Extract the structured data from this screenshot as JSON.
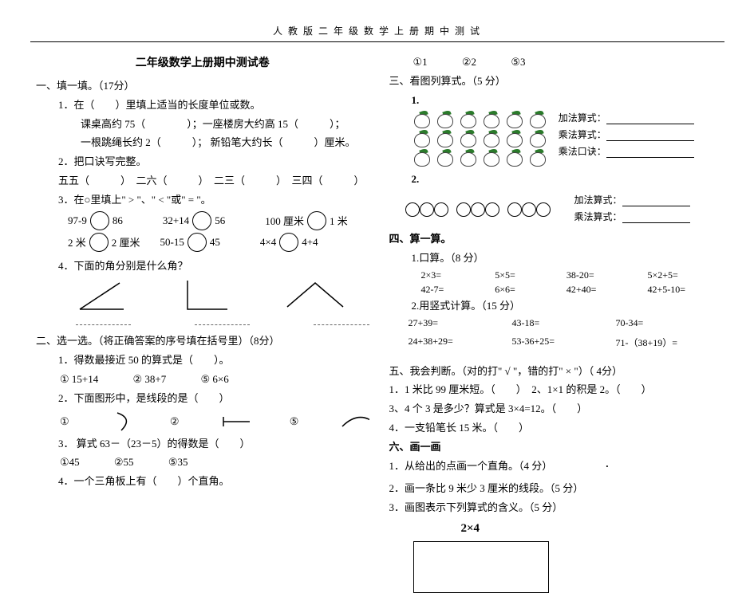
{
  "header": "人 教 版 二 年 级 数 学 上 册 期 中 测 试",
  "title": "二年级数学上册期中测试卷",
  "s1": {
    "h": "一、填一填。（17分）",
    "q1": "1．在（　　）里填上适当的长度单位或数。",
    "q1a": "课桌高约 75（　　　　）；一座楼房大约高 15（　　　）；",
    "q1b": "一根跳绳长约 2（　　　）； 新铅笔大约长（　　　）厘米。",
    "q2": "2．把口诀写完整。",
    "q2a": "五五（　　　）　二六（　　　）　二三（　　　）　三四（　　　）",
    "q3": "3．在○里填上\" > \"、\" < \"或\" = \"。",
    "q3r1a": "97-9",
    "q3r1b": "86",
    "q3r1c": "32+14",
    "q3r1d": "56",
    "q3r1e": "100 厘米",
    "q3r1f": "1 米",
    "q3r2a": "2 米",
    "q3r2b": "2 厘米",
    "q3r2c": "50-15",
    "q3r2d": "45",
    "q3r2e": "4×4",
    "q3r2f": "4+4",
    "q4": "4．下面的角分别是什么角？"
  },
  "s2": {
    "h": "二、选一选。（将正确答案的序号填在括号里）（8分）",
    "q1": "1．得数最接近 50 的算式是（　　）。",
    "q1a": "① 15+14",
    "q1b": "② 38+7",
    "q1c": "⑤ 6×6",
    "q2": "2．下面图形中，是线段的是（　　）",
    "q3": "3． 算式 63－（23－5）的得数是（　　）",
    "q3a": "①45",
    "q3b": "②55",
    "q3c": "⑤35",
    "q4": "4．一个三角板上有（　　）个直角。",
    "q4a": "①1",
    "q4b": "②2",
    "q4c": "⑤3"
  },
  "s3": {
    "h": "三、看图列算式。（5 分）",
    "lbl1": "1.",
    "eq1": "加法算式：",
    "eq2": "乘法算式：",
    "eq3": "乘法口诀：",
    "lbl2": "2.",
    "eq4": "加法算式：",
    "eq5": "乘法算式："
  },
  "s4": {
    "h": "四、算一算。",
    "q1": "1.口算。（8 分）",
    "c": [
      "2×3=",
      "5×5=",
      "38-20=",
      "5×2+5=",
      "42-7=",
      "6×6=",
      "42+40=",
      "42+5-10="
    ],
    "q2": "2.用竖式计算。（15 分）",
    "v": [
      "27+39=",
      "43-18=",
      "70-34=",
      "24+38+29=",
      "53-36+25=",
      "71-（38+19）="
    ]
  },
  "s5": {
    "h": "五、我会判断。（对的打\" √ \"，错的打\" × \"）（ 4分）",
    "l1": "1．1 米比 99 厘米短。（　　）　2、1×1 的积是 2。（　　）",
    "l2": "3、4 个 3 是多少？算式是 3×4=12。（　　）",
    "l3": "4．一支铅笔长 15 米。（　　）"
  },
  "s6": {
    "h": "六、画一画",
    "q1": "1．从给出的点画一个直角。（4 分）",
    "q2": "2．画一条比 9 米少 3 厘米的线段。（5 分）",
    "q3": "3．画图表示下列算式的含义。（5 分）",
    "expr": "2×4"
  }
}
